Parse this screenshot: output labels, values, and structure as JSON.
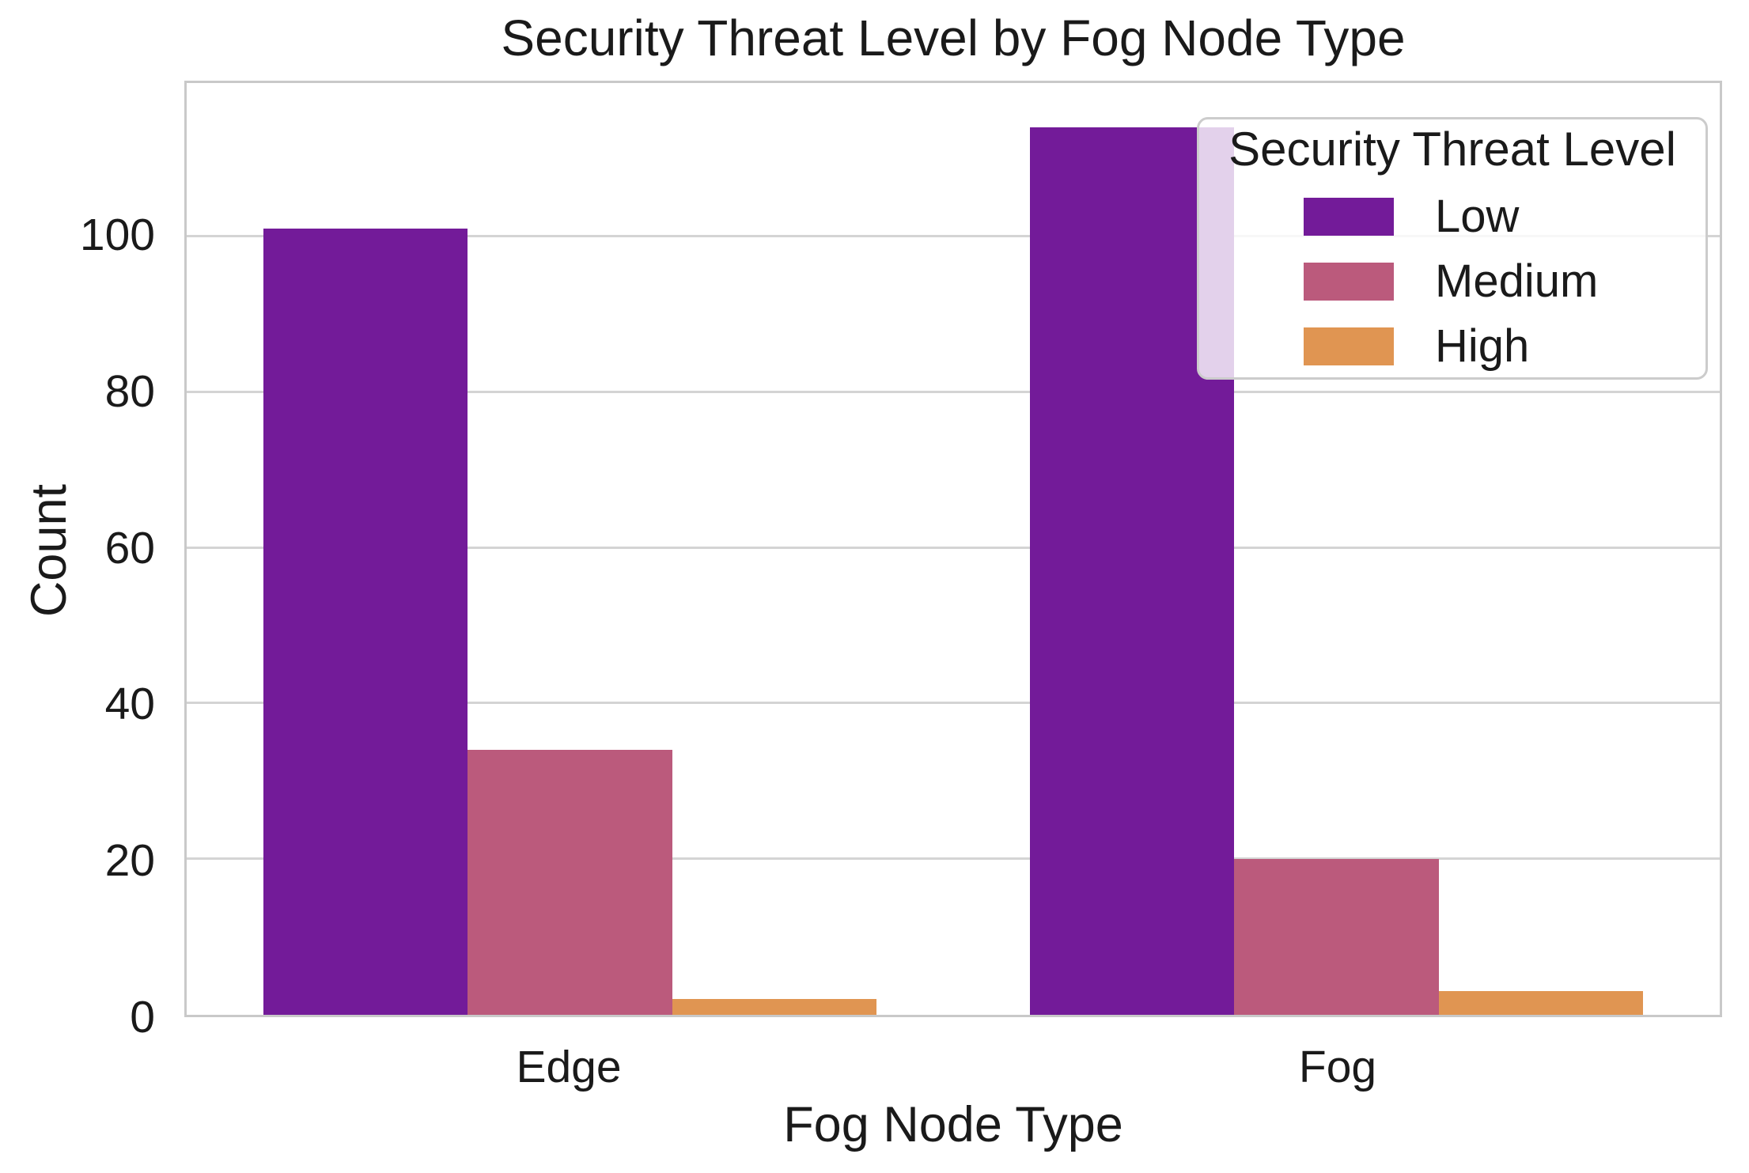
{
  "title": "Security Threat Level by Fog Node Type",
  "axes": {
    "x_label": "Fog Node Type",
    "y_label": "Count",
    "x_tick_labels": [
      "Edge",
      "Fog"
    ],
    "y_tick_labels": [
      "0",
      "20",
      "40",
      "60",
      "80",
      "100"
    ]
  },
  "legend": {
    "title": "Security Threat Level",
    "entries": [
      {
        "label": "Low",
        "color": "#731b99"
      },
      {
        "label": "Medium",
        "color": "#bb5a7c"
      },
      {
        "label": "High",
        "color": "#e09552"
      }
    ]
  },
  "colors": {
    "low": "#731b99",
    "medium": "#bb5a7c",
    "high": "#e09552",
    "gridline": "#d4d4d4",
    "spine": "#c9c9c9"
  },
  "chart_data": {
    "type": "bar",
    "title": "Security Threat Level by Fog Node Type",
    "xlabel": "Fog Node Type",
    "ylabel": "Count",
    "categories": [
      "Edge",
      "Fog"
    ],
    "series": [
      {
        "name": "Low",
        "color": "#731b99",
        "values": [
          101,
          114
        ]
      },
      {
        "name": "Medium",
        "color": "#bb5a7c",
        "values": [
          34,
          20
        ]
      },
      {
        "name": "High",
        "color": "#e09552",
        "values": [
          2,
          3
        ]
      }
    ],
    "y_ticks": [
      0,
      20,
      40,
      60,
      80,
      100
    ],
    "ylim": [
      0,
      119.7
    ],
    "grid": true,
    "legend_title": "Security Threat Level",
    "legend_position": "upper right"
  }
}
